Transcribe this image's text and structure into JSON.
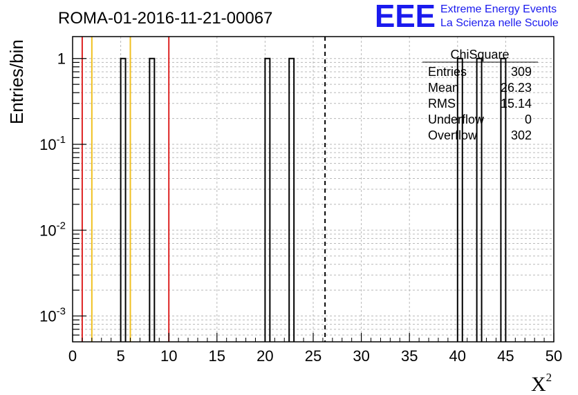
{
  "chart_data": {
    "type": "bar",
    "title": "ROMA-01-2016-11-21-00067",
    "xlabel": "X",
    "xlabel_superscript": "2",
    "ylabel": "Entries/bin",
    "xlim": [
      0,
      50
    ],
    "ylim": [
      0.0005,
      1.8
    ],
    "yscale": "log",
    "grid": true,
    "x_ticks": [
      0,
      5,
      10,
      15,
      20,
      25,
      30,
      35,
      40,
      45,
      50
    ],
    "y_ticks": [
      {
        "value": 1,
        "label": "1"
      },
      {
        "value": 0.1,
        "label": "10",
        "exp": "-1"
      },
      {
        "value": 0.01,
        "label": "10",
        "exp": "-2"
      },
      {
        "value": 0.001,
        "label": "10",
        "exp": "-3"
      }
    ],
    "bin_width": 0.5,
    "bins": [
      {
        "x_low": 5.0,
        "value": 1
      },
      {
        "x_low": 8.0,
        "value": 1
      },
      {
        "x_low": 20.0,
        "value": 1
      },
      {
        "x_low": 22.5,
        "value": 1
      },
      {
        "x_low": 40.0,
        "value": 1
      },
      {
        "x_low": 42.0,
        "value": 1
      },
      {
        "x_low": 44.5,
        "value": 1
      }
    ],
    "vertical_lines": [
      {
        "x": 1,
        "color": "#dd2222",
        "style": "solid"
      },
      {
        "x": 2,
        "color": "#f0c020",
        "style": "solid"
      },
      {
        "x": 6,
        "color": "#f0c020",
        "style": "solid"
      },
      {
        "x": 10,
        "color": "#dd2222",
        "style": "solid"
      },
      {
        "x": 26.23,
        "color": "#000000",
        "style": "dashed"
      }
    ],
    "stats_box": {
      "title": "ChiSquare",
      "rows": [
        {
          "label": "Entries",
          "value": "309"
        },
        {
          "label": "Mean",
          "value": "26.23"
        },
        {
          "label": "RMS",
          "value": "15.14"
        },
        {
          "label": "Underflow",
          "value": "0"
        },
        {
          "label": "Overflow",
          "value": "302"
        }
      ]
    }
  },
  "logo": {
    "text": "EEE",
    "line1": "Extreme Energy Events",
    "line2": "La Scienza nelle Scuole",
    "color": "#1a1aee"
  }
}
